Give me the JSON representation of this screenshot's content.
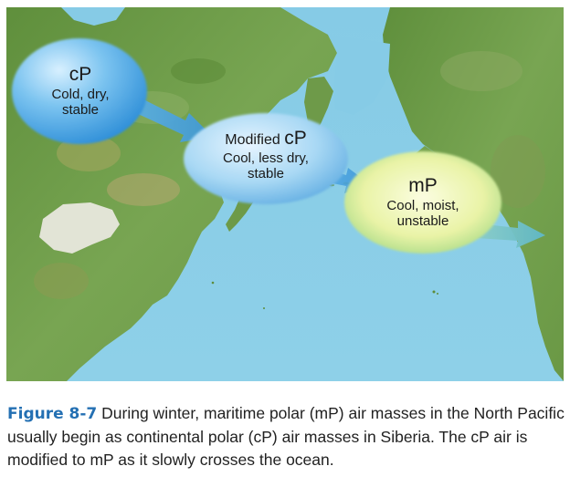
{
  "map": {
    "air_masses": [
      {
        "name": "cP",
        "lines": [
          "Cold, dry,",
          "stable"
        ]
      },
      {
        "name_prefix": "Modified ",
        "name": "cP",
        "lines": [
          "Cool, less dry,",
          "stable"
        ]
      },
      {
        "name": "mP",
        "lines": [
          "Cool, moist,",
          "unstable"
        ]
      }
    ]
  },
  "caption": {
    "label": "Figure 8-7",
    "text": "During winter, maritime polar (mP) air masses in the North Pacific usually begin as continental polar (cP) air masses in Siberia. The cP air is modified to mP as it slowly crosses the ocean."
  },
  "colors": {
    "ocean": "#7cc3df",
    "land": "#6f9a4c",
    "caption_label": "#2470b3",
    "cp_bubble": "#3d9fe2",
    "mp_bubble": "#e8f0a0"
  }
}
